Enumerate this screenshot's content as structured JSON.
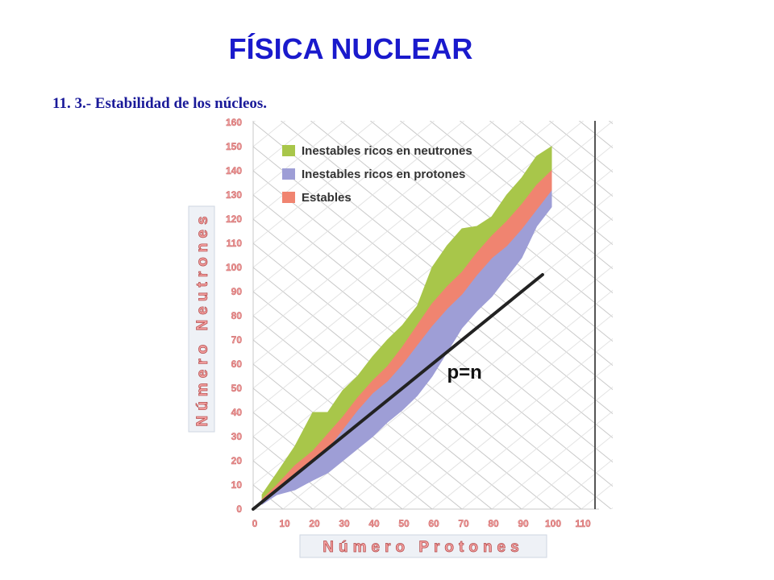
{
  "slide": {
    "title": "FÍSICA NUCLEAR",
    "subtitle": "11. 3.- Estabilidad de los núcleos."
  },
  "chart_data": {
    "type": "area",
    "xlabel": "Número Protones",
    "ylabel": "Número Neutrones",
    "xlim": [
      0,
      110
    ],
    "ylim": [
      0,
      160
    ],
    "x_ticks": [
      0,
      10,
      20,
      30,
      40,
      50,
      60,
      70,
      80,
      90,
      100,
      110
    ],
    "y_ticks": [
      0,
      10,
      20,
      30,
      40,
      50,
      60,
      70,
      80,
      90,
      100,
      110,
      120,
      130,
      140,
      150,
      160
    ],
    "grid": "diagonal",
    "legend": "top-left",
    "series": [
      {
        "name": "Inestables ricos en neutrones",
        "color": "#a8c64a",
        "x": [
          3,
          8,
          14,
          20,
          25,
          30,
          35,
          40,
          45,
          50,
          55,
          60,
          65,
          70,
          75,
          80,
          85,
          90,
          95,
          100
        ],
        "upper": [
          6,
          15,
          26,
          40,
          40,
          49,
          55,
          63,
          70,
          76,
          84,
          100,
          109,
          116,
          117,
          121,
          130,
          137,
          146,
          150
        ],
        "lower": [
          4,
          10,
          18,
          24,
          31,
          38,
          46,
          53,
          59,
          67,
          76,
          85,
          92,
          98,
          106,
          113,
          119,
          126,
          134,
          140
        ]
      },
      {
        "name": "Inestables ricos en protones",
        "color": "#9e9ed6",
        "x": [
          3,
          8,
          14,
          20,
          25,
          30,
          35,
          40,
          45,
          50,
          55,
          60,
          65,
          70,
          75,
          80,
          85,
          90,
          95,
          100
        ],
        "upper": [
          3,
          8,
          14,
          20,
          25,
          33,
          41,
          48,
          53,
          60,
          68,
          76,
          83,
          89,
          97,
          104,
          109,
          116,
          124,
          132
        ],
        "lower": [
          2,
          6,
          8,
          12,
          15,
          20,
          25,
          30,
          36,
          41,
          47,
          55,
          65,
          75,
          82,
          88,
          96,
          104,
          117,
          125
        ]
      },
      {
        "name": "Estables",
        "color": "#f08470",
        "x": [
          3,
          8,
          14,
          20,
          25,
          30,
          35,
          40,
          45,
          50,
          55,
          60,
          65,
          70,
          75,
          80,
          85,
          90,
          95,
          100
        ],
        "upper": [
          4,
          10,
          18,
          24,
          31,
          38,
          46,
          53,
          59,
          67,
          76,
          85,
          92,
          98,
          106,
          113,
          119,
          126,
          134,
          140
        ],
        "lower": [
          3,
          8,
          14,
          20,
          25,
          33,
          41,
          48,
          53,
          60,
          68,
          76,
          83,
          89,
          97,
          104,
          109,
          116,
          124,
          132
        ]
      }
    ],
    "reference_line": {
      "label": "p=n",
      "x": [
        0,
        97
      ],
      "y": [
        0,
        97
      ],
      "color": "#222222"
    }
  }
}
